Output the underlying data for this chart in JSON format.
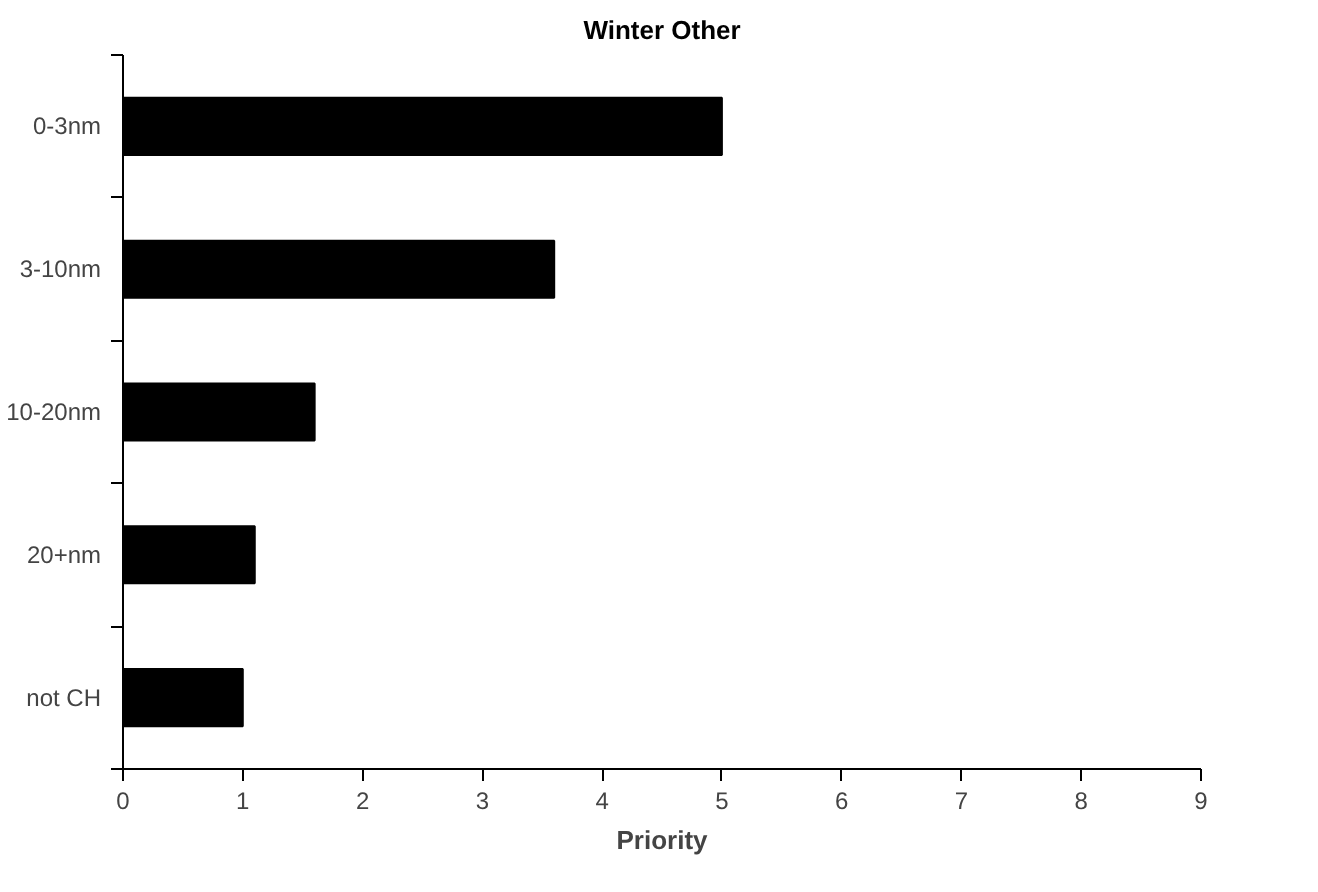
{
  "chart_data": {
    "type": "bar",
    "orientation": "horizontal",
    "title": "Winter Other",
    "xlabel": "Priority",
    "categories": [
      "0-3nm",
      "3-10nm",
      "10-20nm",
      "20+nm",
      "not CH"
    ],
    "values": [
      5.0,
      3.6,
      1.6,
      1.1,
      1.0
    ],
    "color": "#000000",
    "xlim": [
      0,
      9
    ],
    "xticks": [
      0,
      1,
      2,
      3,
      4,
      5,
      6,
      7,
      8,
      9
    ],
    "grid": false
  }
}
